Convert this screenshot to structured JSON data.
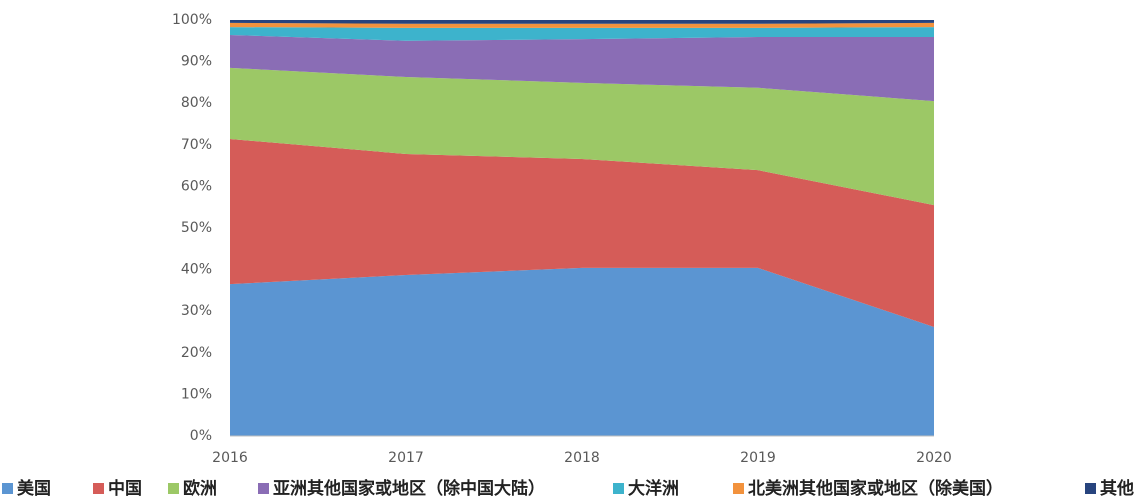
{
  "chart_data": {
    "type": "stacked_area_percent",
    "categories": [
      "2016",
      "2017",
      "2018",
      "2019",
      "2020"
    ],
    "series": [
      {
        "name": "美国",
        "color": "#5b95d2",
        "values": [
          36.5,
          38.7,
          40.4,
          40.4,
          26.2
        ]
      },
      {
        "name": "中国",
        "color": "#d55c58",
        "values": [
          34.9,
          29.1,
          26.2,
          23.5,
          29.3
        ]
      },
      {
        "name": "欧洲",
        "color": "#9cc866",
        "values": [
          17.1,
          18.5,
          18.3,
          19.8,
          25.0
        ]
      },
      {
        "name": "亚洲其他国家或地区（除中国大陆）",
        "color": "#8a6db5",
        "values": [
          7.9,
          8.7,
          10.5,
          12.2,
          15.4
        ]
      },
      {
        "name": "大洋洲",
        "color": "#3db3cc",
        "values": [
          1.9,
          3.1,
          2.7,
          2.2,
          2.4
        ]
      },
      {
        "name": "北美洲其他国家或地区（除美国）",
        "color": "#f2923d",
        "values": [
          1.0,
          1.0,
          1.0,
          1.0,
          1.0
        ]
      },
      {
        "name": "其他",
        "color": "#27447e",
        "values": [
          0.7,
          0.9,
          0.9,
          0.9,
          0.7
        ]
      }
    ],
    "ylim": [
      0,
      100
    ],
    "yticks": [
      {
        "value": 0,
        "label": "0%"
      },
      {
        "value": 10,
        "label": "10%"
      },
      {
        "value": 20,
        "label": "20%"
      },
      {
        "value": 30,
        "label": "30%"
      },
      {
        "value": 40,
        "label": "40%"
      },
      {
        "value": 50,
        "label": "50%"
      },
      {
        "value": 60,
        "label": "60%"
      },
      {
        "value": 70,
        "label": "70%"
      },
      {
        "value": 80,
        "label": "80%"
      },
      {
        "value": 90,
        "label": "90%"
      },
      {
        "value": 100,
        "label": "100%"
      }
    ],
    "grid": false,
    "legend": "bottom"
  }
}
